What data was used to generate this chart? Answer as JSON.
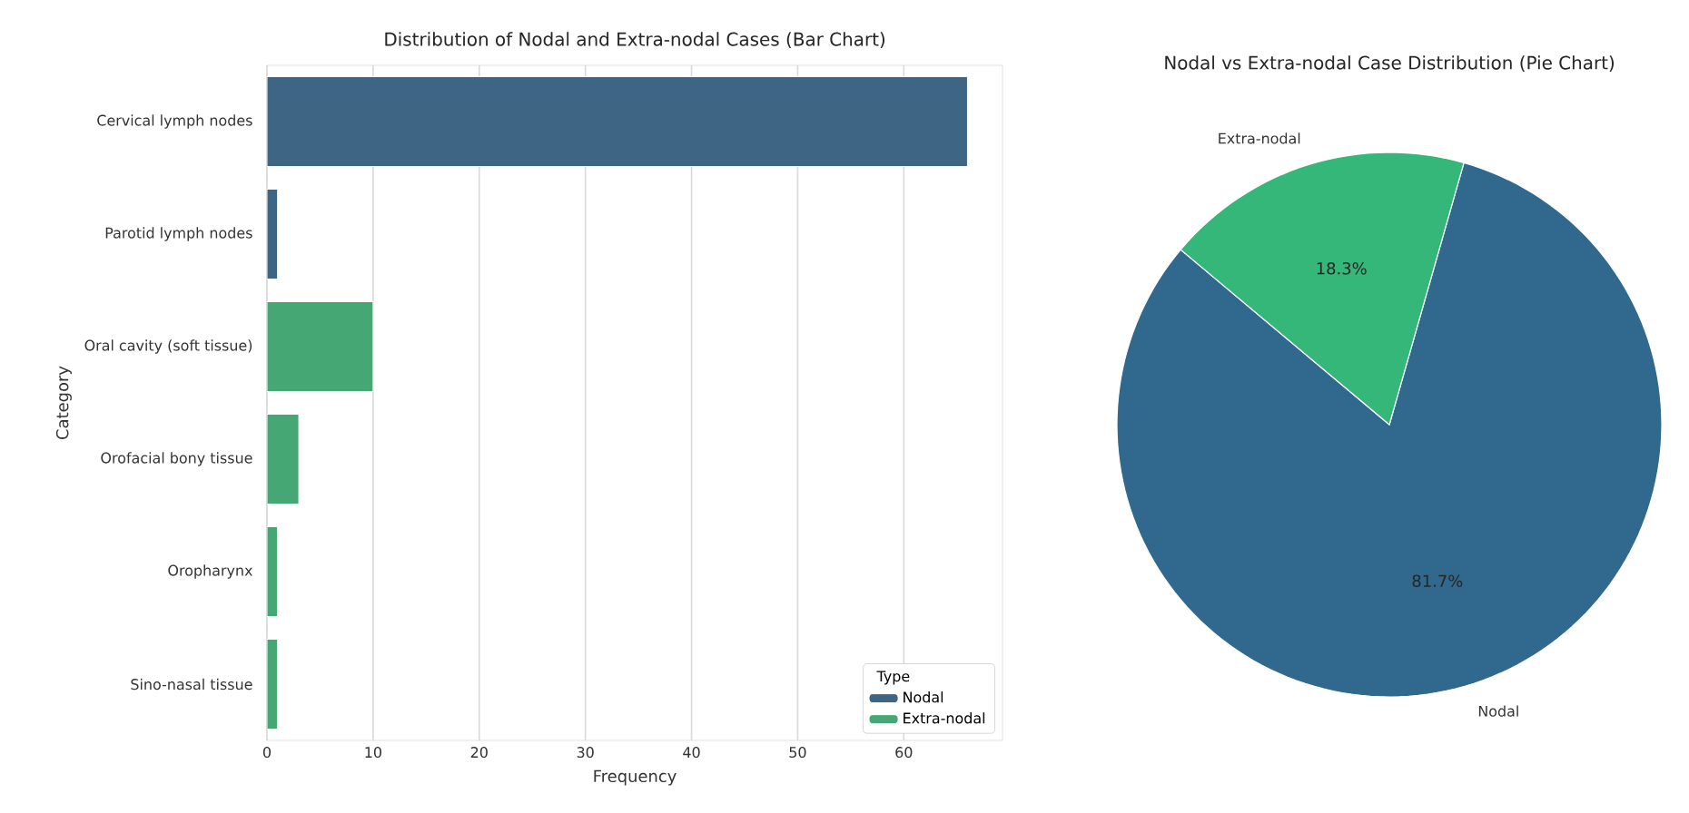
{
  "chart_data": [
    {
      "type": "bar",
      "orientation": "horizontal",
      "title": "Distribution of Nodal and Extra-nodal Cases (Bar Chart)",
      "xlabel": "Frequency",
      "ylabel": "Category",
      "legend_title": "Type",
      "categories": [
        "Cervical lymph nodes",
        "Parotid lymph nodes",
        "Oral cavity (soft tissue)",
        "Orofacial bony tissue",
        "Oropharynx",
        "Sino-nasal tissue"
      ],
      "series": [
        {
          "name": "Nodal",
          "color": "#3f6584",
          "values": [
            66,
            1,
            null,
            null,
            null,
            null
          ]
        },
        {
          "name": "Extra-nodal",
          "color": "#45a874",
          "values": [
            null,
            null,
            10,
            3,
            1,
            1
          ]
        }
      ],
      "xlim": [
        0,
        69.3
      ],
      "xticks": [
        0,
        10,
        20,
        30,
        40,
        50,
        60
      ],
      "grid": "x",
      "legend": "bottom right"
    },
    {
      "type": "pie",
      "title": "Nodal vs Extra-nodal Case Distribution (Pie Chart)",
      "categories": [
        "Nodal",
        "Extra-nodal"
      ],
      "values": [
        81.7,
        18.3
      ],
      "value_labels": [
        "81.7%",
        "18.3%"
      ],
      "colors": [
        "#31688e",
        "#35b779"
      ]
    }
  ]
}
